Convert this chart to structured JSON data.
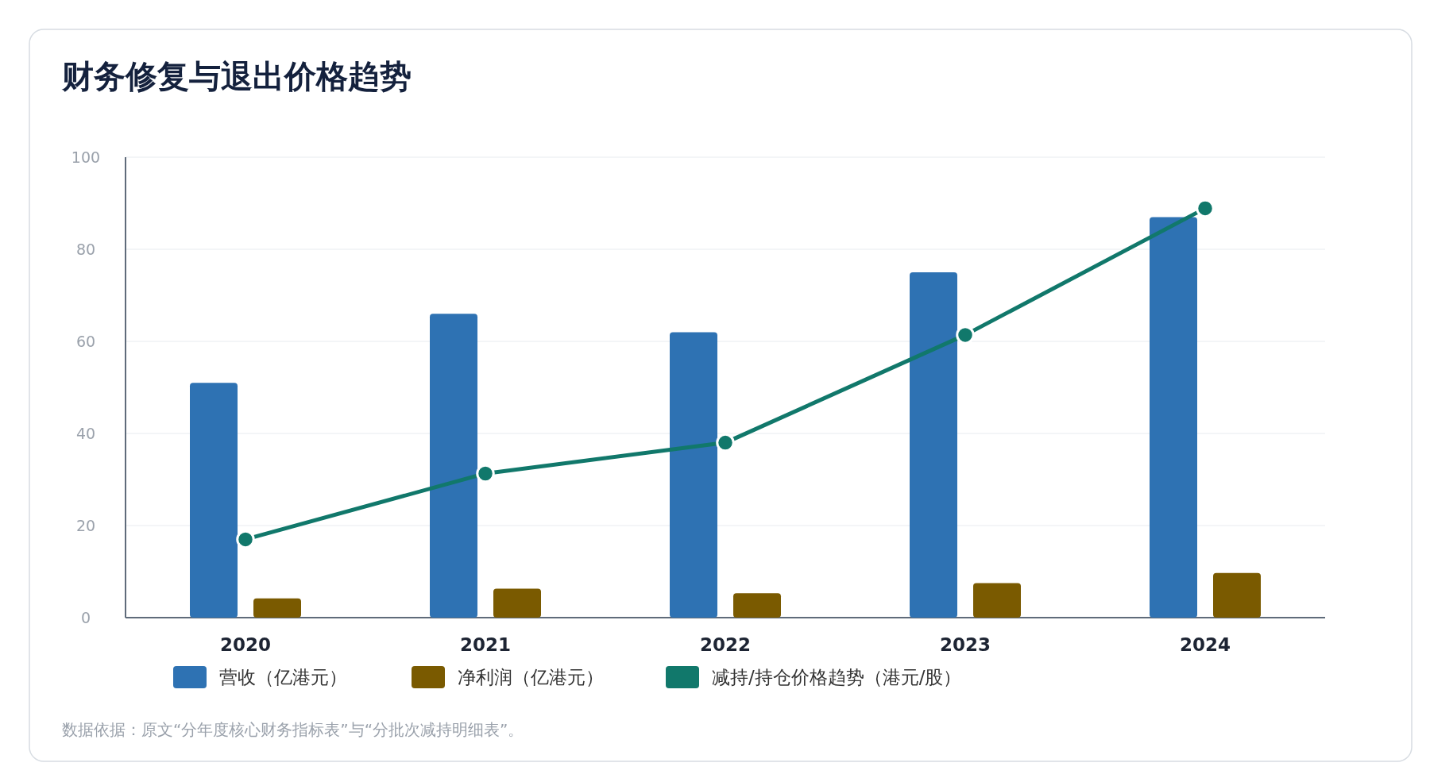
{
  "chart_data": {
    "type": "bar",
    "title": "财务修复与退出价格趋势",
    "categories": [
      "2020",
      "2021",
      "2022",
      "2023",
      "2024"
    ],
    "series": [
      {
        "name": "营收（亿港元）",
        "color": "#2e72b3",
        "values": [
          51,
          66,
          62,
          75,
          87
        ]
      },
      {
        "name": "净利润（亿港元）",
        "color": "#7a5a00",
        "values": [
          4.2,
          6.3,
          5.3,
          7.5,
          9.7
        ]
      },
      {
        "name": "减持/持仓价格趋势（港元/股）",
        "type": "line",
        "color": "#11786b",
        "values": [
          17,
          31.3,
          38,
          61.4,
          88.9
        ]
      }
    ],
    "ylim": [
      0,
      100
    ],
    "yticks": [
      0,
      20,
      40,
      60,
      80,
      100
    ],
    "grid": "y",
    "legend": "bottom left",
    "marker": "circle",
    "annotations": [
      "数据依据：原文“分年度核心财务指标表”与“分批次减持明细表”。"
    ]
  }
}
